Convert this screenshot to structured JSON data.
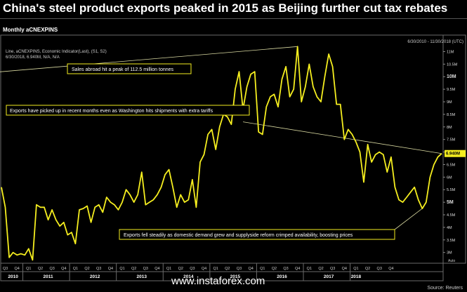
{
  "headline": "China's steel product exports peaked in 2015 as Beijing further cut tax rebates",
  "panel_title": "Monthly aCNEXPINS",
  "date_range": "6/30/2010 - 11/30/2018 (UTC)",
  "legend_line1": "Line, aCNEXPINS, Economic Indicator(Last), (S1, S2)",
  "legend_line2": "6/30/2018, 6.940M, N/A, N/A",
  "last_value_label": "6.940M",
  "source": "Source: Reuters",
  "watermark": "www.instaforex.com",
  "auto_label": "Auto",
  "chart_data": {
    "type": "line",
    "series": [
      {
        "values": [
          5.6,
          4.8,
          2.8,
          3.0,
          2.9,
          2.95,
          2.9,
          3.15,
          2.7,
          4.9,
          4.8,
          4.8,
          4.3,
          4.7,
          4.3,
          4.05,
          4.2,
          3.7,
          3.8,
          3.35,
          4.7,
          4.75,
          4.85,
          4.2,
          4.8,
          4.9,
          4.6,
          5.2,
          5.0,
          4.9,
          4.7,
          5.0,
          5.5,
          5.3,
          5.0,
          5.3,
          6.2,
          4.9,
          5.0,
          5.1,
          5.3,
          5.6,
          6.1,
          6.3,
          5.6,
          4.8,
          5.3,
          5.0,
          5.1,
          5.9,
          4.8,
          6.6,
          6.9,
          7.7,
          7.9,
          7.1,
          8.0,
          8.5,
          8.4,
          8.1,
          9.5,
          10.2,
          8.7,
          9.6,
          10.1,
          10.2,
          7.8,
          7.7,
          8.8,
          9.2,
          9.3,
          8.8,
          9.9,
          10.4,
          9.2,
          9.5,
          11.2,
          9.0,
          9.6,
          10.5,
          9.6,
          9.2,
          9.0,
          10.0,
          10.9,
          10.4,
          8.9,
          8.9,
          7.5,
          7.9,
          7.7,
          7.4,
          7.0,
          5.8,
          7.3,
          6.6,
          6.9,
          7.0,
          6.9,
          6.2,
          6.8,
          5.6,
          5.1,
          5.0,
          5.2,
          5.4,
          5.6,
          5.1,
          4.75,
          5.0,
          6.0,
          6.5,
          6.8,
          6.94
        ]
      }
    ],
    "ylim": [
      2.6,
      11.6
    ],
    "y_ticks": [
      {
        "v": 3.0,
        "label": "3M",
        "bold": false
      },
      {
        "v": 3.5,
        "label": "3.5M",
        "bold": false
      },
      {
        "v": 4.0,
        "label": "4M",
        "bold": false
      },
      {
        "v": 4.5,
        "label": "4.5M",
        "bold": false
      },
      {
        "v": 5.0,
        "label": "5M",
        "bold": true
      },
      {
        "v": 5.5,
        "label": "5.5M",
        "bold": false
      },
      {
        "v": 6.0,
        "label": "6M",
        "bold": false
      },
      {
        "v": 6.5,
        "label": "6.5M",
        "bold": false
      },
      {
        "v": 7.0,
        "label": "7M",
        "bold": false
      },
      {
        "v": 7.5,
        "label": "7.5M",
        "bold": false
      },
      {
        "v": 8.0,
        "label": "8M",
        "bold": false
      },
      {
        "v": 8.5,
        "label": "8.5M",
        "bold": false
      },
      {
        "v": 9.0,
        "label": "9M",
        "bold": false
      },
      {
        "v": 9.5,
        "label": "9.5M",
        "bold": false
      },
      {
        "v": 10.0,
        "label": "10M",
        "bold": true
      },
      {
        "v": 10.5,
        "label": "10.5M",
        "bold": false
      },
      {
        "v": 11.0,
        "label": "11M",
        "bold": false
      }
    ],
    "quarter_labels": [
      "Q3",
      "Q4",
      "Q1",
      "Q2",
      "Q3",
      "Q4",
      "Q1",
      "Q2",
      "Q3",
      "Q4",
      "Q1",
      "Q2",
      "Q3",
      "Q4",
      "Q1",
      "Q2",
      "Q3",
      "Q4",
      "Q1",
      "Q2",
      "Q3",
      "Q4",
      "Q1",
      "Q2",
      "Q3",
      "Q4",
      "Q1",
      "Q2",
      "Q3",
      "Q4",
      "Q1",
      "Q2",
      "Q3",
      "Q4"
    ],
    "year_labels": [
      "2010",
      "2011",
      "2012",
      "2013",
      "2014",
      "2015",
      "2016",
      "2017",
      "2018"
    ],
    "trendlines": [
      {
        "from": [
          76,
          11.2
        ],
        "to": [
          -9,
          10.08
        ]
      },
      {
        "from": [
          62,
          8.2
        ],
        "to": [
          113,
          6.94
        ]
      }
    ],
    "annotations": [
      "Sales abroad hit a peak of 112.5 million tonnes",
      "Exports have picked up in recent months even as Washington hits shipments with extra tariffs",
      "Exports fell steadily as domestic demand grew and supplyside reform crimped availability, boosting prices"
    ]
  }
}
